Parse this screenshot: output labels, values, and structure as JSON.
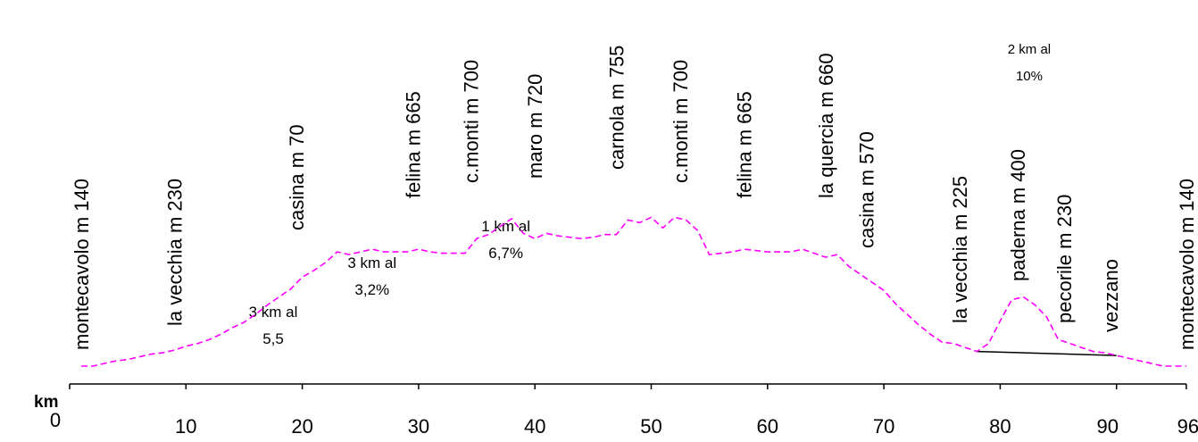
{
  "chart_data": {
    "type": "line",
    "title": "",
    "xlabel": "km",
    "ylabel": "",
    "xlim": [
      0,
      96
    ],
    "x_ticks": [
      0,
      10,
      20,
      30,
      40,
      50,
      60,
      70,
      80,
      90,
      96
    ],
    "line_color": "#ff00ff",
    "line_style": "dashed",
    "series": [
      {
        "x": [
          1,
          2,
          3,
          4,
          5,
          6,
          7,
          8,
          9,
          10,
          11,
          12,
          13,
          14,
          15,
          16,
          17,
          18,
          19,
          20,
          21,
          22,
          23,
          24,
          25,
          26,
          27,
          28,
          29,
          30,
          31,
          32,
          33,
          34,
          35,
          36,
          37,
          38,
          39,
          40,
          41,
          42,
          43,
          44,
          45,
          46,
          47,
          48,
          49,
          50,
          51,
          52,
          53,
          54,
          55,
          56,
          57,
          58,
          59,
          60,
          61,
          62,
          63,
          64,
          65,
          66,
          67,
          68,
          69,
          70,
          71,
          72,
          73,
          74,
          75,
          76,
          77,
          78,
          79,
          80,
          81,
          82,
          83,
          84,
          85,
          86,
          87,
          88,
          89,
          90,
          91,
          92,
          93,
          94,
          95,
          96
        ],
        "y": [
          140,
          140,
          150,
          160,
          165,
          175,
          185,
          190,
          200,
          215,
          225,
          240,
          260,
          285,
          305,
          335,
          370,
          400,
          430,
          475,
          500,
          530,
          570,
          560,
          570,
          580,
          570,
          570,
          570,
          580,
          570,
          565,
          565,
          565,
          620,
          635,
          665,
          695,
          640,
          620,
          640,
          630,
          625,
          620,
          625,
          635,
          635,
          690,
          680,
          700,
          660,
          700,
          690,
          650,
          560,
          565,
          570,
          580,
          575,
          570,
          570,
          570,
          580,
          565,
          550,
          560,
          515,
          485,
          455,
          425,
          375,
          335,
          295,
          260,
          230,
          225,
          210,
          195,
          225,
          310,
          390,
          400,
          370,
          325,
          240,
          225,
          210,
          195,
          190,
          180,
          170,
          160,
          150,
          140,
          140,
          140
        ]
      }
    ],
    "baseline": {
      "x": [
        78,
        90
      ],
      "y": [
        195,
        180
      ],
      "color": "#000000"
    },
    "place_labels": [
      {
        "x": 1,
        "text": "montecavolo m 140"
      },
      {
        "x": 9,
        "text": "la vecchia m 230"
      },
      {
        "x": 19.5,
        "text": "casina m 70"
      },
      {
        "x": 29.5,
        "text": "felina m 665"
      },
      {
        "x": 34.5,
        "text": "c.monti m 700"
      },
      {
        "x": 40,
        "text": "maro m 720"
      },
      {
        "x": 47,
        "text": "carnola m 755"
      },
      {
        "x": 52.5,
        "text": "c.monti m 700"
      },
      {
        "x": 58,
        "text": "felina m 665"
      },
      {
        "x": 65,
        "text": "la quercia m 660"
      },
      {
        "x": 68.5,
        "text": "casina m 570"
      },
      {
        "x": 76.5,
        "text": "la vecchia m 225"
      },
      {
        "x": 81.5,
        "text": "paderna m 400"
      },
      {
        "x": 85.5,
        "text": "pecorile m 230"
      },
      {
        "x": 89.5,
        "text": "vezzano"
      },
      {
        "x": 96,
        "text": "montecavolo m 140"
      }
    ],
    "annotations": [
      {
        "x": 17.5,
        "lines": [
          "3 km al",
          "5,5"
        ]
      },
      {
        "x": 26,
        "lines": [
          "3 km al",
          "3,2%"
        ]
      },
      {
        "x": 37.5,
        "lines": [
          "1 km al",
          "6,7%"
        ]
      },
      {
        "x": 82.5,
        "lines": [
          "2 km al",
          "10%"
        ]
      }
    ]
  }
}
